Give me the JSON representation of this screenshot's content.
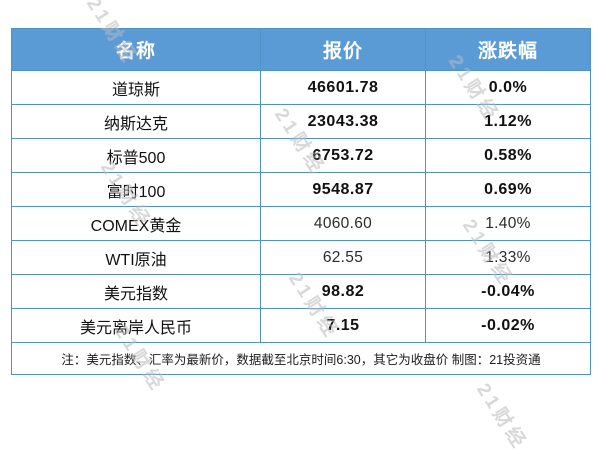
{
  "table": {
    "headers": {
      "name": "名称",
      "price": "报价",
      "change": "涨跌幅"
    },
    "rows": [
      {
        "name": "道琼斯",
        "price": "46601.78",
        "change": "0.0%",
        "light": false
      },
      {
        "name": "纳斯达克",
        "price": "23043.38",
        "change": "1.12%",
        "light": false
      },
      {
        "name": "标普500",
        "price": "6753.72",
        "change": "0.58%",
        "light": false
      },
      {
        "name": "富时100",
        "price": "9548.87",
        "change": "0.69%",
        "light": false
      },
      {
        "name": "COMEX黄金",
        "price": "4060.60",
        "change": "1.40%",
        "light": true
      },
      {
        "name": "WTI原油",
        "price": "62.55",
        "change": "1.33%",
        "light": true
      },
      {
        "name": "美元指数",
        "price": "98.82",
        "change": "-0.04%",
        "light": false
      },
      {
        "name": "美元离岸人民币",
        "price": "7.15",
        "change": "-0.02%",
        "light": false
      }
    ],
    "note": "注：美元指数、汇率为最新价，数据截至北京时间6:30，其它为收盘价 制图：21投资通"
  },
  "watermark": {
    "text": "21财经"
  },
  "colors": {
    "header_bg": "#5b9bd5",
    "border": "#4e93c4",
    "header_text": "#ffffff",
    "body_text": "#111111",
    "watermark": "#b9b9b9"
  }
}
